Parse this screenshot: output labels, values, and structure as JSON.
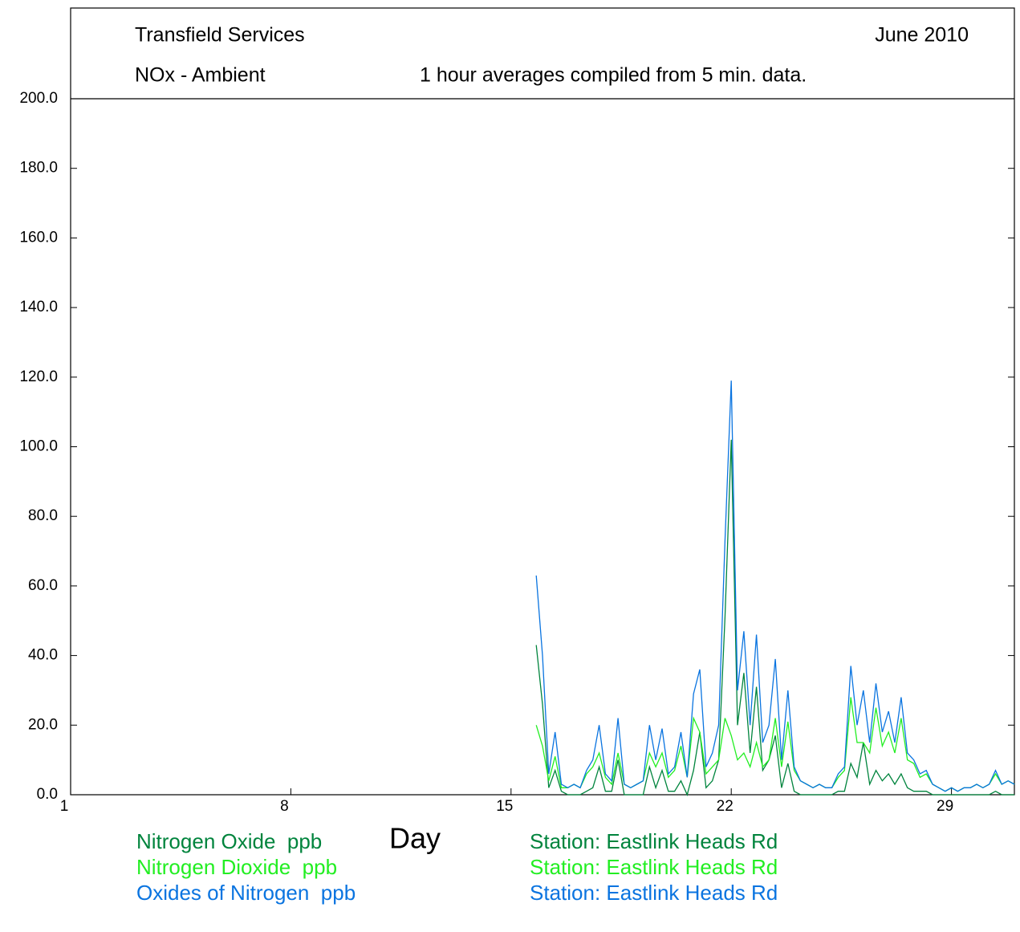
{
  "chart_data": {
    "type": "line",
    "header_left": "Transfield Services",
    "header_right": "June 2010",
    "title": "NOx - Ambient",
    "subtitle": "1 hour averages compiled from 5 min. data.",
    "xlabel": "Day",
    "xlim": [
      1,
      31
    ],
    "xticks": [
      1,
      8,
      15,
      22,
      29
    ],
    "ylim": [
      0,
      200
    ],
    "yticks": [
      {
        "value": 0,
        "label": "0.0"
      },
      {
        "value": 20,
        "label": "20.0"
      },
      {
        "value": 40,
        "label": "40.0"
      },
      {
        "value": 60,
        "label": "60.0"
      },
      {
        "value": 80,
        "label": "80.0"
      },
      {
        "value": 100,
        "label": "100.0"
      },
      {
        "value": 120,
        "label": "120.0"
      },
      {
        "value": 140,
        "label": "140.0"
      },
      {
        "value": 160,
        "label": "160.0"
      },
      {
        "value": 180,
        "label": "180.0"
      },
      {
        "value": 200,
        "label": "200.0"
      }
    ],
    "x": [
      15.8,
      16.0,
      16.2,
      16.4,
      16.6,
      16.8,
      17.0,
      17.2,
      17.4,
      17.6,
      17.8,
      18.0,
      18.2,
      18.4,
      18.6,
      18.8,
      19.0,
      19.2,
      19.4,
      19.6,
      19.8,
      20.0,
      20.2,
      20.4,
      20.6,
      20.8,
      21.0,
      21.2,
      21.4,
      21.6,
      21.8,
      22.0,
      22.2,
      22.4,
      22.6,
      22.8,
      23.0,
      23.2,
      23.4,
      23.6,
      23.8,
      24.0,
      24.2,
      24.4,
      24.6,
      24.8,
      25.0,
      25.2,
      25.4,
      25.6,
      25.8,
      26.0,
      26.2,
      26.4,
      26.6,
      26.8,
      27.0,
      27.2,
      27.4,
      27.6,
      27.8,
      28.0,
      28.2,
      28.4,
      28.6,
      28.8,
      29.0,
      29.2,
      29.4,
      29.6,
      29.8,
      30.0,
      30.2,
      30.4,
      30.6,
      30.8,
      31.0
    ],
    "series": [
      {
        "name": "Nitrogen Oxide  ppb",
        "station": "Station: Eastlink Heads Rd",
        "color": "#00843d",
        "values": [
          43,
          26,
          2,
          7,
          1,
          0,
          0,
          0,
          1,
          2,
          8,
          1,
          1,
          10,
          0,
          0,
          0,
          0,
          8,
          2,
          7,
          1,
          1,
          4,
          0,
          7,
          18,
          2,
          4,
          10,
          51,
          102,
          20,
          35,
          12,
          31,
          7,
          10,
          17,
          2,
          9,
          1,
          0,
          0,
          0,
          0,
          0,
          0,
          1,
          1,
          9,
          5,
          15,
          3,
          7,
          4,
          6,
          3,
          6,
          2,
          1,
          1,
          1,
          0,
          0,
          0,
          0,
          0,
          0,
          0,
          0,
          0,
          0,
          1,
          0,
          0,
          0
        ]
      },
      {
        "name": "Nitrogen Dioxide  ppb",
        "station": "Station: Eastlink Heads Rd",
        "color": "#22ee22",
        "values": [
          20,
          14,
          4,
          11,
          2,
          2,
          3,
          2,
          6,
          8,
          12,
          5,
          3,
          12,
          3,
          2,
          3,
          4,
          12,
          8,
          12,
          5,
          7,
          14,
          5,
          22,
          18,
          6,
          8,
          10,
          22,
          17,
          10,
          12,
          8,
          15,
          8,
          10,
          22,
          8,
          21,
          7,
          4,
          3,
          2,
          3,
          2,
          2,
          5,
          7,
          28,
          15,
          15,
          12,
          25,
          14,
          18,
          12,
          22,
          10,
          9,
          5,
          6,
          3,
          2,
          1,
          2,
          1,
          2,
          2,
          3,
          2,
          3,
          6,
          3,
          4,
          3
        ]
      },
      {
        "name": "Oxides of Nitrogen  ppb",
        "station": "Station: Eastlink Heads Rd",
        "color": "#0a74e0",
        "values": [
          63,
          40,
          6,
          18,
          3,
          2,
          3,
          2,
          7,
          10,
          20,
          6,
          4,
          22,
          3,
          2,
          3,
          4,
          20,
          10,
          19,
          6,
          8,
          18,
          5,
          29,
          36,
          8,
          12,
          20,
          73,
          119,
          30,
          47,
          20,
          46,
          15,
          20,
          39,
          10,
          30,
          8,
          4,
          3,
          2,
          3,
          2,
          2,
          6,
          8,
          37,
          20,
          30,
          15,
          32,
          18,
          24,
          15,
          28,
          12,
          10,
          6,
          7,
          3,
          2,
          1,
          2,
          1,
          2,
          2,
          3,
          2,
          3,
          7,
          3,
          4,
          3
        ]
      }
    ]
  }
}
